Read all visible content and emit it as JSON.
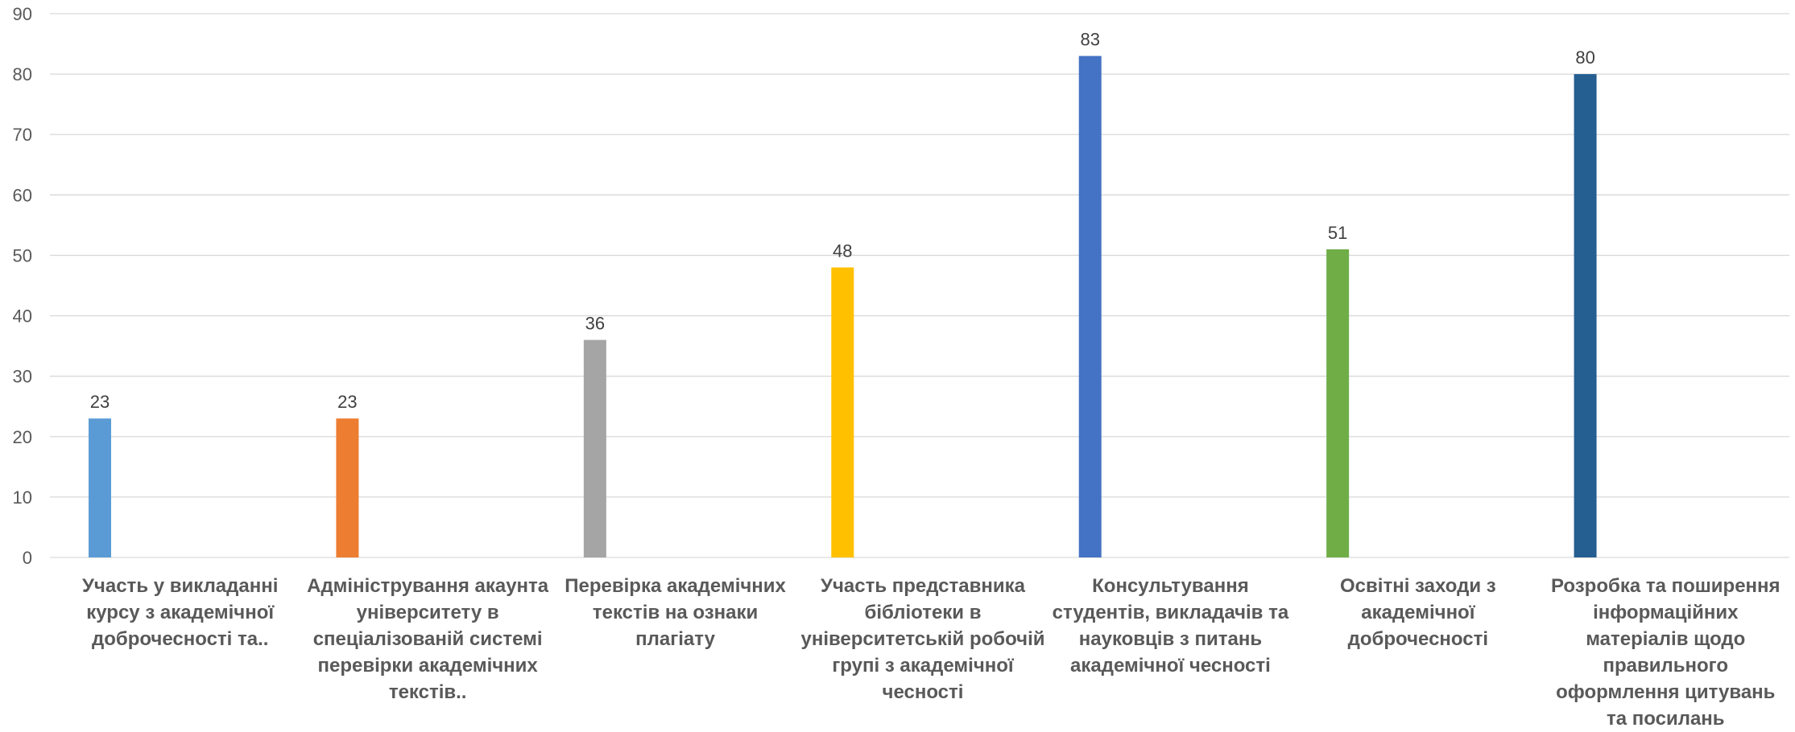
{
  "chart_data": {
    "type": "bar",
    "title": "",
    "xlabel": "",
    "ylabel": "",
    "ylim": [
      0,
      90
    ],
    "yticks": [
      0,
      10,
      20,
      30,
      40,
      50,
      60,
      70,
      80,
      90
    ],
    "grid": true,
    "legend": "none",
    "categories": [
      [
        "Участь у викладанні",
        "курсу з академічної",
        "доброчесності та.."
      ],
      [
        "Адміністрування акаунта",
        "університету в",
        "спеціалізованій системі",
        "перевірки академічних",
        "текстів.."
      ],
      [
        "Перевірка академічних",
        "текстів на ознаки",
        "плагіату"
      ],
      [
        "Участь представника",
        "бібліотеки  в",
        "університетській робочій",
        "групі з академічної",
        "чесності"
      ],
      [
        "Консультування",
        "студентів, викладачів та",
        "науковців з питань",
        "академічної чесності"
      ],
      [
        "Освітні заходи з",
        "академічної",
        "доброчесності"
      ],
      [
        "Розробка та поширення",
        "інформаційних",
        "матеріалів щодо",
        "правильного",
        "оформлення цитувань",
        "та посилань"
      ]
    ],
    "values": [
      23,
      23,
      36,
      48,
      83,
      51,
      80
    ],
    "colors": [
      "#5b9bd5",
      "#ed7d31",
      "#a5a5a5",
      "#ffc000",
      "#4472c4",
      "#70ad47",
      "#255e91"
    ]
  }
}
